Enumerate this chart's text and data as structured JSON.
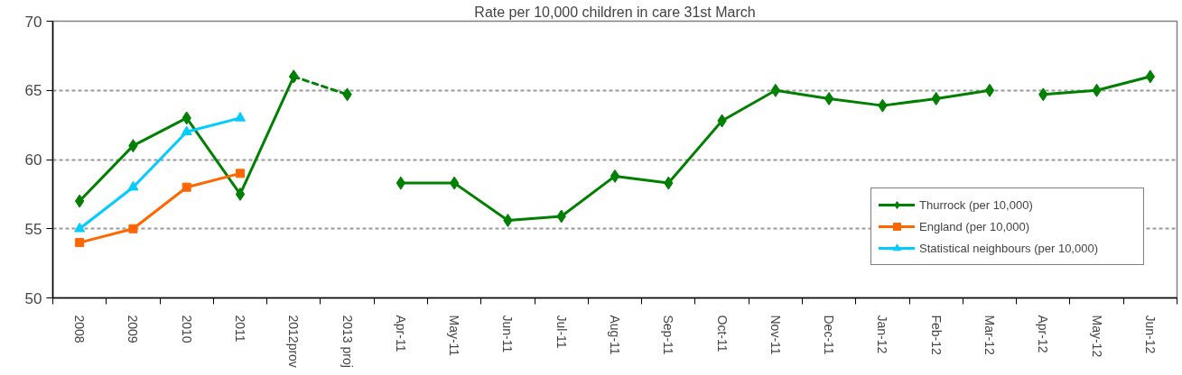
{
  "chart_data": {
    "type": "line",
    "title": "Rate per 10,000 children in care 31st March",
    "categories": [
      "2008",
      "2009",
      "2010",
      "2011",
      "2012prov",
      "2013 proj",
      "Apr-11",
      "May-11",
      "Jun-11",
      "Jul-11",
      "Aug-11",
      "Sep-11",
      "Oct-11",
      "Nov-11",
      "Dec-11",
      "Jan-12",
      "Feb-12",
      "Mar-12",
      "Apr-12",
      "May-12",
      "Jun-12"
    ],
    "series": [
      {
        "name": "Thurrock (per 10,000)",
        "color": "#008000",
        "marker": "diamond",
        "values": [
          57,
          61,
          63,
          57.5,
          66,
          null,
          null,
          null,
          null,
          null,
          null,
          null,
          null,
          null,
          null,
          null,
          null,
          null,
          null,
          null,
          null
        ]
      },
      {
        "color": "#008000",
        "marker": "diamond",
        "line_style": "dashed",
        "values": [
          null,
          null,
          null,
          null,
          66,
          64.7,
          null,
          null,
          null,
          null,
          null,
          null,
          null,
          null,
          null,
          null,
          null,
          null,
          null,
          null,
          null
        ]
      },
      {
        "color": "#008000",
        "marker": "diamond",
        "values": [
          null,
          null,
          null,
          null,
          null,
          null,
          58.3,
          58.3,
          55.6,
          55.9,
          58.8,
          58.3,
          62.8,
          65,
          64.4,
          63.9,
          64.4,
          65,
          null,
          null,
          null
        ]
      },
      {
        "color": "#008000",
        "marker": "diamond",
        "values": [
          null,
          null,
          null,
          null,
          null,
          null,
          null,
          null,
          null,
          null,
          null,
          null,
          null,
          null,
          null,
          null,
          null,
          null,
          64.7,
          65,
          66
        ]
      },
      {
        "name": "England (per 10,000)",
        "color": "#ff6600",
        "marker": "square",
        "values": [
          54,
          55,
          58,
          59,
          null,
          null,
          null,
          null,
          null,
          null,
          null,
          null,
          null,
          null,
          null,
          null,
          null,
          null,
          null,
          null,
          null
        ]
      },
      {
        "name": "Statistical neighbours (per 10,000)",
        "color": "#00ccff",
        "marker": "triangle",
        "values": [
          55,
          58,
          62,
          63,
          null,
          null,
          null,
          null,
          null,
          null,
          null,
          null,
          null,
          null,
          null,
          null,
          null,
          null,
          null,
          null,
          null
        ]
      }
    ],
    "ylim": [
      50,
      70
    ],
    "yticks": [
      50,
      55,
      60,
      65,
      70
    ],
    "grid": "y",
    "legend": "bottom right",
    "line_style": "solid"
  }
}
